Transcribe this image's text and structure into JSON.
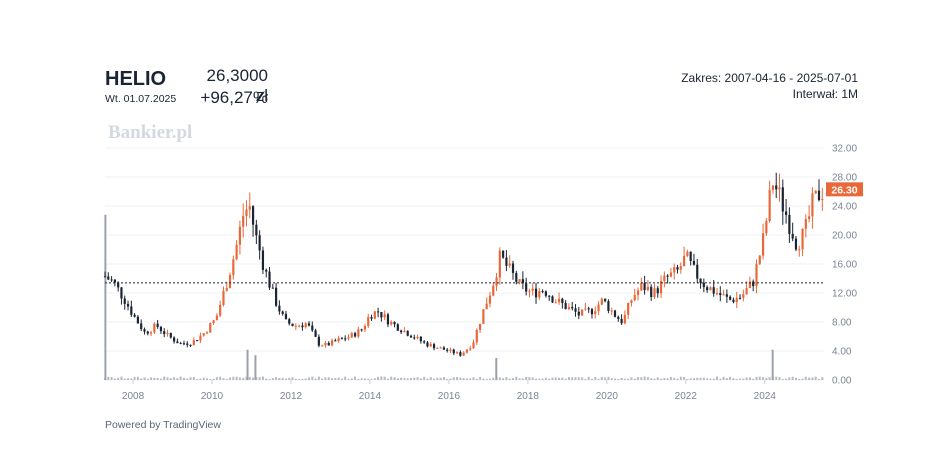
{
  "header": {
    "ticker": "HELIO",
    "date": "Wt. 01.07.2025",
    "price": "26,3000 zł",
    "change": "+96,27%",
    "range": "Zakres: 2007-04-16 - 2025-07-01",
    "interval": "Interwał: 1M"
  },
  "watermark": "Bankier.pl",
  "footer": "Powered by TradingView",
  "colors": {
    "up": "#e9683a",
    "down": "#1b2433",
    "price_badge": "#e9683a",
    "grid": "#eef0f3"
  },
  "chart_data": {
    "type": "candlestick",
    "x_range": [
      2007.29,
      2025.5
    ],
    "ylim": [
      0,
      32
    ],
    "y_ticks": [
      0,
      4,
      8,
      12,
      16,
      20,
      24,
      28,
      32
    ],
    "y_tick_labels": [
      "0.00",
      "4.00",
      "8.00",
      "12.00",
      "16.00",
      "20.00",
      "24.00",
      "28.00",
      "32.00"
    ],
    "x_ticks": [
      2008,
      2010,
      2012,
      2014,
      2016,
      2018,
      2020,
      2022,
      2024
    ],
    "x_tick_labels": [
      "2008",
      "2010",
      "2012",
      "2014",
      "2016",
      "2018",
      "2020",
      "2022",
      "2024"
    ],
    "reference_line": 13.4,
    "last_price": 26.3,
    "last_price_label": "26.30",
    "close_path": [
      [
        2007.29,
        14.3
      ],
      [
        2007.5,
        13.5
      ],
      [
        2007.8,
        11.0
      ],
      [
        2008.0,
        9.0
      ],
      [
        2008.3,
        6.5
      ],
      [
        2008.6,
        7.5
      ],
      [
        2008.9,
        6.0
      ],
      [
        2009.2,
        5.0
      ],
      [
        2009.5,
        5.2
      ],
      [
        2009.8,
        6.5
      ],
      [
        2010.1,
        8.5
      ],
      [
        2010.35,
        13.0
      ],
      [
        2010.6,
        18.0
      ],
      [
        2010.8,
        23.0
      ],
      [
        2010.95,
        24.0
      ],
      [
        2011.1,
        20.0
      ],
      [
        2011.35,
        15.0
      ],
      [
        2011.6,
        11.0
      ],
      [
        2011.85,
        8.0
      ],
      [
        2012.1,
        7.5
      ],
      [
        2012.4,
        7.8
      ],
      [
        2012.7,
        5.0
      ],
      [
        2012.9,
        4.8
      ],
      [
        2013.2,
        5.5
      ],
      [
        2013.5,
        6.0
      ],
      [
        2013.8,
        7.0
      ],
      [
        2014.0,
        9.0
      ],
      [
        2014.2,
        9.5
      ],
      [
        2014.5,
        8.0
      ],
      [
        2014.8,
        7.0
      ],
      [
        2015.1,
        6.0
      ],
      [
        2015.4,
        5.0
      ],
      [
        2015.7,
        4.5
      ],
      [
        2016.0,
        4.0
      ],
      [
        2016.3,
        3.5
      ],
      [
        2016.6,
        5.0
      ],
      [
        2016.9,
        10.0
      ],
      [
        2017.1,
        13.0
      ],
      [
        2017.3,
        17.0
      ],
      [
        2017.55,
        15.0
      ],
      [
        2017.8,
        13.0
      ],
      [
        2018.1,
        12.0
      ],
      [
        2018.4,
        12.5
      ],
      [
        2018.7,
        11.0
      ],
      [
        2019.0,
        10.0
      ],
      [
        2019.3,
        9.0
      ],
      [
        2019.6,
        9.5
      ],
      [
        2019.9,
        11.0
      ],
      [
        2020.2,
        9.0
      ],
      [
        2020.4,
        8.0
      ],
      [
        2020.65,
        11.5
      ],
      [
        2020.9,
        13.0
      ],
      [
        2021.2,
        12.0
      ],
      [
        2021.5,
        14.0
      ],
      [
        2021.8,
        15.0
      ],
      [
        2022.0,
        17.0
      ],
      [
        2022.2,
        15.0
      ],
      [
        2022.5,
        13.0
      ],
      [
        2022.8,
        12.0
      ],
      [
        2023.1,
        11.0
      ],
      [
        2023.4,
        11.5
      ],
      [
        2023.7,
        13.5
      ],
      [
        2023.95,
        19.0
      ],
      [
        2024.2,
        27.5
      ],
      [
        2024.4,
        25.0
      ],
      [
        2024.6,
        22.0
      ],
      [
        2024.8,
        19.0
      ],
      [
        2025.0,
        20.0
      ],
      [
        2025.2,
        24.0
      ],
      [
        2025.4,
        26.0
      ],
      [
        2025.5,
        26.3
      ]
    ],
    "volume_spikes": [
      [
        2007.3,
        3.0
      ],
      [
        2010.9,
        0.55
      ],
      [
        2011.1,
        0.45
      ],
      [
        2017.2,
        0.4
      ],
      [
        2024.2,
        0.55
      ]
    ]
  }
}
